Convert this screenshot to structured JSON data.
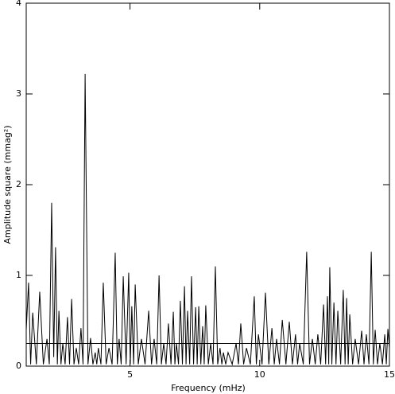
{
  "chart_data": {
    "type": "line",
    "xlabel": "Frequency (mHz)",
    "ylabel": "Amplitude square (mmag²)",
    "xlim": [
      1,
      15
    ],
    "xticks": [
      5,
      10,
      15
    ],
    "ylim": [
      0,
      4
    ],
    "yticks": [
      0,
      1,
      2,
      3,
      4
    ],
    "threshold": 0.25,
    "series": [
      {
        "color": "#000000",
        "x": [
          1.0,
          1.09,
          1.17,
          1.25,
          1.39,
          1.52,
          1.66,
          1.8,
          1.89,
          1.98,
          2.06,
          2.13,
          2.2,
          2.26,
          2.34,
          2.41,
          2.5,
          2.59,
          2.67,
          2.75,
          2.84,
          2.93,
          3.02,
          3.11,
          3.19,
          3.27,
          3.38,
          3.48,
          3.57,
          3.66,
          3.72,
          3.78,
          3.88,
          3.97,
          4.08,
          4.19,
          4.31,
          4.43,
          4.51,
          4.58,
          4.66,
          4.74,
          4.85,
          4.95,
          5.01,
          5.07,
          5.14,
          5.2,
          5.32,
          5.44,
          5.58,
          5.72,
          5.83,
          5.93,
          6.03,
          6.12,
          6.21,
          6.3,
          6.39,
          6.48,
          6.58,
          6.67,
          6.73,
          6.79,
          6.87,
          6.94,
          7.02,
          7.1,
          7.16,
          7.22,
          7.3,
          7.37,
          7.45,
          7.53,
          7.59,
          7.65,
          7.73,
          7.8,
          7.86,
          7.92,
          8.02,
          8.11,
          8.2,
          8.29,
          8.38,
          8.47,
          8.54,
          8.6,
          8.69,
          8.78,
          8.94,
          9.09,
          9.18,
          9.27,
          9.38,
          9.49,
          9.64,
          9.79,
          9.87,
          9.95,
          10.09,
          10.22,
          10.35,
          10.47,
          10.56,
          10.65,
          10.76,
          10.87,
          11.01,
          11.14,
          11.26,
          11.38,
          11.46,
          11.54,
          11.68,
          11.81,
          11.92,
          12.03,
          12.14,
          12.24,
          12.35,
          12.46,
          12.54,
          12.61,
          12.66,
          12.7,
          12.78,
          12.86,
          12.94,
          13.01,
          13.12,
          13.22,
          13.29,
          13.35,
          13.41,
          13.47,
          13.58,
          13.68,
          13.81,
          13.93,
          14.02,
          14.11,
          14.21,
          14.3,
          14.38,
          14.45,
          14.54,
          14.63,
          14.73,
          14.82,
          14.88,
          14.94,
          15.0
        ],
        "values": [
          0.4,
          0.92,
          0.02,
          0.59,
          0.02,
          0.82,
          0.02,
          0.3,
          0.02,
          1.8,
          0.1,
          1.31,
          0.02,
          0.61,
          0.02,
          0.25,
          0.02,
          0.54,
          0.02,
          0.74,
          0.02,
          0.2,
          0.02,
          0.42,
          0.02,
          3.22,
          0.02,
          0.31,
          0.02,
          0.15,
          0.02,
          0.2,
          0.02,
          0.92,
          0.02,
          0.2,
          0.02,
          1.25,
          0.02,
          0.3,
          0.02,
          0.99,
          0.02,
          1.03,
          0.02,
          0.66,
          0.02,
          0.9,
          0.02,
          0.3,
          0.02,
          0.61,
          0.02,
          0.3,
          0.02,
          1.0,
          0.02,
          0.25,
          0.02,
          0.47,
          0.02,
          0.6,
          0.02,
          0.25,
          0.02,
          0.72,
          0.02,
          0.88,
          0.02,
          0.61,
          0.02,
          0.99,
          0.02,
          0.65,
          0.02,
          0.66,
          0.02,
          0.44,
          0.02,
          0.67,
          0.02,
          0.25,
          0.02,
          1.1,
          0.02,
          0.2,
          0.02,
          0.15,
          0.02,
          0.15,
          0.02,
          0.25,
          0.02,
          0.47,
          0.02,
          0.2,
          0.02,
          0.77,
          0.02,
          0.35,
          0.02,
          0.81,
          0.02,
          0.42,
          0.02,
          0.3,
          0.02,
          0.51,
          0.02,
          0.49,
          0.02,
          0.35,
          0.02,
          0.25,
          0.02,
          1.26,
          0.02,
          0.3,
          0.02,
          0.35,
          0.02,
          0.68,
          0.02,
          0.77,
          0.02,
          1.09,
          0.02,
          0.7,
          0.02,
          0.61,
          0.02,
          0.84,
          0.02,
          0.75,
          0.02,
          0.57,
          0.02,
          0.3,
          0.02,
          0.39,
          0.02,
          0.35,
          0.02,
          1.26,
          0.02,
          0.4,
          0.02,
          0.25,
          0.02,
          0.35,
          0.02,
          0.41,
          0.2
        ]
      }
    ]
  }
}
